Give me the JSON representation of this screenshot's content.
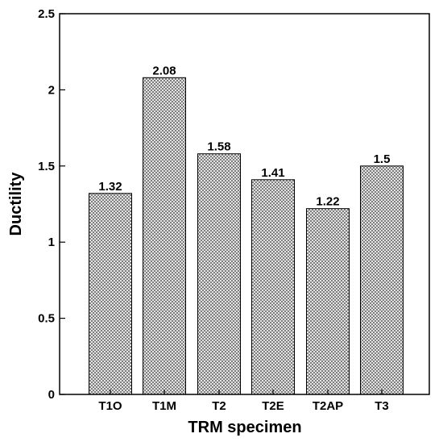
{
  "chart_data": {
    "type": "bar",
    "categories": [
      "T1O",
      "T1M",
      "T2",
      "T2E",
      "T2AP",
      "T3"
    ],
    "values": [
      1.32,
      2.08,
      1.58,
      1.41,
      1.22,
      1.5
    ],
    "data_labels": [
      "1.32",
      "2.08",
      "1.58",
      "1.41",
      "1.22",
      "1.5"
    ],
    "title": "",
    "xlabel": "TRM specimen",
    "ylabel": "Ductility",
    "ylim": [
      0,
      2.5
    ],
    "yticks": [
      0,
      0.5,
      1,
      1.5,
      2,
      2.5
    ],
    "ytick_labels": [
      "0",
      "0.5",
      "1",
      "1.5",
      "2",
      "2.5"
    ],
    "grid": false,
    "legend": "none",
    "bar_fill": "crosshatch",
    "colors": {
      "bar_stroke": "#000000",
      "hatch": "#555555",
      "axis": "#000000"
    }
  }
}
